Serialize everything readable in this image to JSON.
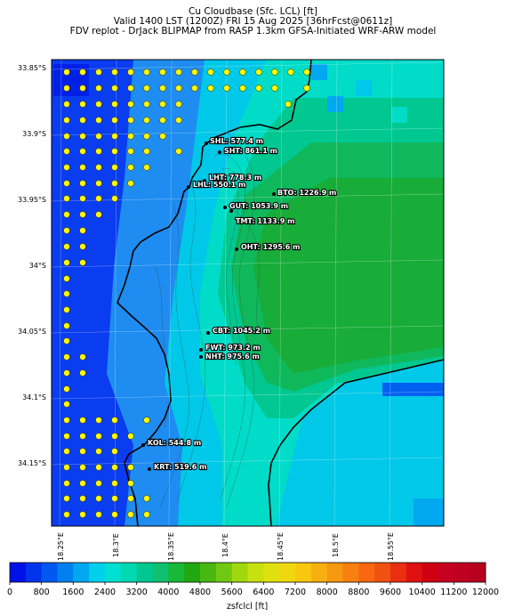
{
  "header": {
    "line1": "Cu Cloudbase (Sfc. LCL) [ft]",
    "line2": "Valid 1400 LST (1200Z) FRI 15 Aug 2025 [36hrFcst@0611z]",
    "line3": "FDV replot - DrJack BLIPMAP from RASP 1.3km GFSA-Initiated WRF-ARW model"
  },
  "axes": {
    "lat_labels": [
      "33.85°S",
      "33.9°S",
      "33.95°S",
      "34°S",
      "34.05°S",
      "34.1°S",
      "34.15°S"
    ],
    "lon_labels": [
      "18.25°E",
      "18.3°E",
      "18.35°E",
      "18.4°E",
      "18.45°E",
      "18.5°E",
      "18.55°E"
    ]
  },
  "sites": [
    {
      "code": "SHL",
      "value": "577.4 m",
      "text": "SHL: 577.4 m"
    },
    {
      "code": "SHT",
      "value": "861.1 m",
      "text": "SHT: 861.1 m"
    },
    {
      "code": "LHT",
      "value": "778.3 m",
      "text": "LHT: 778.3 m"
    },
    {
      "code": "LHL",
      "value": "550.1 m",
      "text": "LHL: 550.1 m"
    },
    {
      "code": "BTO",
      "value": "1226.9 m",
      "text": "BTO: 1226.9 m"
    },
    {
      "code": "GUT",
      "value": "1053.9 m",
      "text": "GUT: 1053.9 m"
    },
    {
      "code": "TMT",
      "value": "1133.9 m",
      "text": "TMT: 1133.9 m"
    },
    {
      "code": "OHT",
      "value": "1295.6 m",
      "text": "OHT: 1295.6 m"
    },
    {
      "code": "CBT",
      "value": "1045.2 m",
      "text": "CBT: 1045.2 m"
    },
    {
      "code": "FWT",
      "value": "973.2 m",
      "text": "FWT: 973.2 m"
    },
    {
      "code": "NHT",
      "value": "975.6 m",
      "text": "NHT: 975.6 m"
    },
    {
      "code": "KOL",
      "value": "544.8 m",
      "text": "KOL: 544.8 m"
    },
    {
      "code": "KRT",
      "value": "519.6 m",
      "text": "KRT: 519.6 m"
    }
  ],
  "colorbar": {
    "label": "zsfclcl [ft]",
    "ticks": [
      "0",
      "800",
      "1600",
      "2400",
      "3200",
      "4000",
      "4800",
      "5600",
      "6400",
      "7200",
      "8000",
      "8800",
      "9600",
      "10400",
      "11200",
      "12000"
    ],
    "min": 0,
    "max": 12000,
    "step": 400,
    "colors": [
      "#0010e8",
      "#0034ec",
      "#0058f0",
      "#0080f0",
      "#00a8f0",
      "#00d0ec",
      "#00e0d0",
      "#00d8b0",
      "#00c890",
      "#10c070",
      "#18b838",
      "#20a810",
      "#48b810",
      "#70c810",
      "#a0d810",
      "#c8e010",
      "#e0e010",
      "#f0d810",
      "#f8c810",
      "#f8b010",
      "#f89810",
      "#f88010",
      "#f86810",
      "#f05010",
      "#e83010",
      "#e01010",
      "#d00010",
      "#c80020",
      "#c00020",
      "#b80020"
    ]
  }
}
